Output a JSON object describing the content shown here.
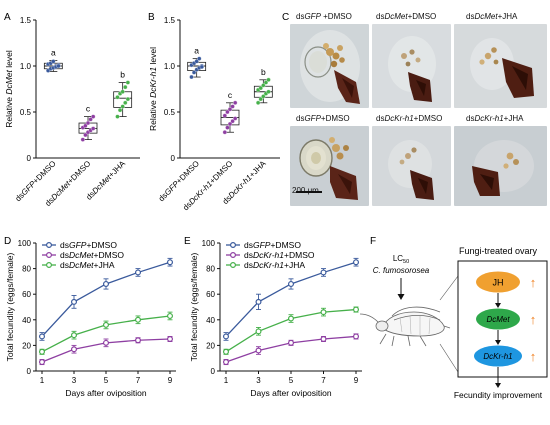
{
  "panel_letters": {
    "A": "A",
    "B": "B",
    "C": "C",
    "D": "D",
    "E": "E",
    "F": "F"
  },
  "colors": {
    "blue": "#3a5a9c",
    "purple": "#8e3fa2",
    "green": "#46b04a",
    "jh": "#f0a030",
    "dcmet": "#2ea84a",
    "dckr": "#1e96e0",
    "arrow_up": "#f08020"
  },
  "chart_data": [
    {
      "panel": "A",
      "type": "box",
      "ylabel_prefix": "Relative ",
      "ylabel_gene": "DcMet",
      "ylabel_suffix": " level",
      "ylim": [
        0,
        1.5
      ],
      "yticks": [
        "0",
        "0.5",
        "1.0",
        "1.5"
      ],
      "categories": [
        {
          "pre": "ds",
          "gene": "GFP",
          "post": "+DMSO"
        },
        {
          "pre": "ds",
          "gene": "DcMet",
          "post": "+DMSO"
        },
        {
          "pre": "ds",
          "gene": "DcMet",
          "post": "+JHA"
        }
      ],
      "letters": [
        "a",
        "c",
        "b"
      ],
      "box_stats": [
        {
          "min": 0.94,
          "q1": 0.97,
          "median": 1.0,
          "q3": 1.03,
          "max": 1.06
        },
        {
          "min": 0.2,
          "q1": 0.27,
          "median": 0.32,
          "q3": 0.38,
          "max": 0.45
        },
        {
          "min": 0.45,
          "q1": 0.55,
          "median": 0.65,
          "q3": 0.72,
          "max": 0.82
        }
      ],
      "points": [
        [
          0.95,
          0.97,
          0.98,
          1.0,
          1.01,
          1.02,
          1.03,
          1.05,
          0.99,
          1.0
        ],
        [
          0.2,
          0.25,
          0.28,
          0.3,
          0.32,
          0.33,
          0.35,
          0.38,
          0.42,
          0.45
        ],
        [
          0.45,
          0.52,
          0.56,
          0.6,
          0.64,
          0.66,
          0.7,
          0.72,
          0.77,
          0.82
        ]
      ]
    },
    {
      "panel": "B",
      "type": "box",
      "ylabel_prefix": "Relative ",
      "ylabel_gene": "DcKr-h1",
      "ylabel_suffix": " level",
      "ylim": [
        0,
        1.5
      ],
      "yticks": [
        "0",
        "0.5",
        "1.0",
        "1.5"
      ],
      "categories": [
        {
          "pre": "ds",
          "gene": "GFP",
          "post": "+DMSO"
        },
        {
          "pre": "ds",
          "gene": "DcKr-h1",
          "post": "+DMSO"
        },
        {
          "pre": "ds",
          "gene": "DcKr-h1",
          "post": "+JHA"
        }
      ],
      "letters": [
        "a",
        "c",
        "b"
      ],
      "box_stats": [
        {
          "min": 0.88,
          "q1": 0.95,
          "median": 1.0,
          "q3": 1.04,
          "max": 1.08
        },
        {
          "min": 0.28,
          "q1": 0.36,
          "median": 0.44,
          "q3": 0.52,
          "max": 0.6
        },
        {
          "min": 0.6,
          "q1": 0.66,
          "median": 0.72,
          "q3": 0.78,
          "max": 0.85
        }
      ],
      "points": [
        [
          0.88,
          0.93,
          0.96,
          0.98,
          1.0,
          1.01,
          1.03,
          1.05,
          1.08,
          0.99
        ],
        [
          0.28,
          0.33,
          0.37,
          0.4,
          0.43,
          0.46,
          0.5,
          0.53,
          0.56,
          0.6
        ],
        [
          0.6,
          0.64,
          0.67,
          0.7,
          0.72,
          0.74,
          0.76,
          0.79,
          0.82,
          0.85
        ]
      ]
    },
    {
      "panel": "D",
      "type": "line",
      "xlabel": "Days after oviposition",
      "ylabel": "Total fecundity (eggs/female)",
      "x": [
        1,
        3,
        5,
        7,
        9
      ],
      "ylim": [
        0,
        100
      ],
      "yticks": [
        "0",
        "20",
        "40",
        "60",
        "80",
        "100"
      ],
      "xticks": [
        "1",
        "3",
        "5",
        "7",
        "9"
      ],
      "series": [
        {
          "pre": "ds",
          "gene": "GFP",
          "post": "+DMSO",
          "values": [
            27,
            54,
            68,
            77,
            85
          ],
          "err": [
            3,
            5,
            4,
            3,
            3
          ]
        },
        {
          "pre": "ds",
          "gene": "DcMet",
          "post": "+DMSO",
          "values": [
            7,
            17,
            22,
            24,
            25
          ],
          "err": [
            2,
            3,
            3,
            2,
            2
          ]
        },
        {
          "pre": "ds",
          "gene": "DcMet",
          "post": "+JHA",
          "values": [
            15,
            28,
            36,
            40,
            43
          ],
          "err": [
            2,
            3,
            3,
            3,
            3
          ]
        }
      ]
    },
    {
      "panel": "E",
      "type": "line",
      "xlabel": "Days after oviposition",
      "ylabel": "Total fecundity (eggs/female)",
      "x": [
        1,
        3,
        5,
        7,
        9
      ],
      "ylim": [
        0,
        100
      ],
      "yticks": [
        "0",
        "20",
        "40",
        "60",
        "80",
        "100"
      ],
      "xticks": [
        "1",
        "3",
        "5",
        "7",
        "9"
      ],
      "series": [
        {
          "pre": "ds",
          "gene": "GFP",
          "post": "+DMSO",
          "values": [
            27,
            54,
            68,
            77,
            85
          ],
          "err": [
            3,
            6,
            4,
            3,
            3
          ]
        },
        {
          "pre": "ds",
          "gene": "DcKr-h1",
          "post": "+DMSO",
          "values": [
            7,
            16,
            22,
            25,
            27
          ],
          "err": [
            2,
            3,
            2,
            2,
            2
          ]
        },
        {
          "pre": "ds",
          "gene": "DcKr-h1",
          "post": "+JHA",
          "values": [
            15,
            31,
            41,
            46,
            48
          ],
          "err": [
            2,
            3,
            3,
            3,
            2
          ]
        }
      ]
    }
  ],
  "photos": {
    "labels": [
      {
        "pre": "ds",
        "gene": "GFP",
        "post": " +DMSO"
      },
      {
        "pre": "ds",
        "gene": "DcMet",
        "post": "+DMSO"
      },
      {
        "pre": "ds",
        "gene": "DcMet",
        "post": "+JHA"
      },
      {
        "pre": "ds",
        "gene": "GFP",
        "post": "+DMSO"
      },
      {
        "pre": "ds",
        "gene": "DcKr-h1",
        "post": "+DMSO"
      },
      {
        "pre": "ds",
        "gene": "DcKr-h1",
        "post": "+JHA"
      }
    ],
    "scale_bar": "200 μm"
  },
  "pathway": {
    "lc_base": "LC",
    "lc_sub": "50",
    "fungus": "C. fumosorosea",
    "title": "Fungi-treated ovary",
    "nodes": [
      "JH",
      "DcMet",
      "DcKr-h1"
    ],
    "up_arrow": "↑",
    "outcome": "Fecundity improvement"
  }
}
